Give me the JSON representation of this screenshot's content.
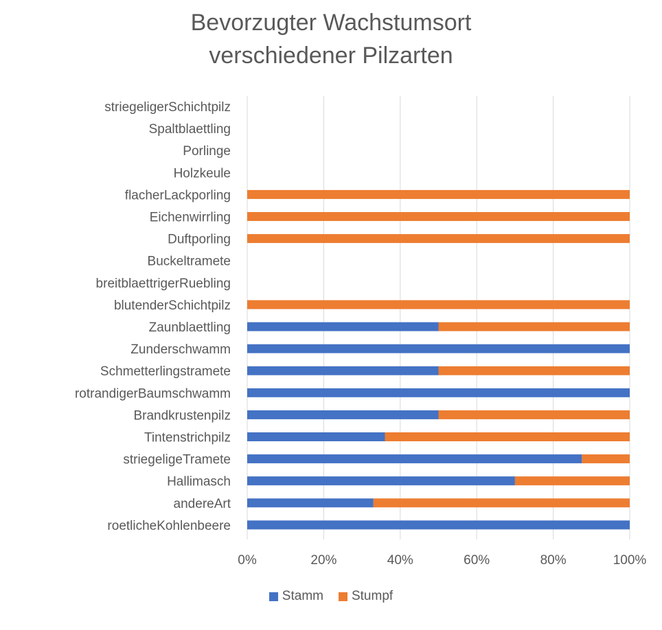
{
  "chart_data": {
    "type": "bar",
    "orientation": "horizontal",
    "stacked": "percent",
    "title_lines": [
      "Bevorzugter Wachstumsort",
      "verschiedener Pilzarten"
    ],
    "categories": [
      "striegeligerSchichtpilz",
      "Spaltblaettling",
      "Porlinge",
      "Holzkeule",
      "flacherLackporling",
      "Eichenwirrling",
      "Duftporling",
      "Buckeltramete",
      "breitblaettrigerRuebling",
      "blutenderSchichtpilz",
      "Zaunblaettling",
      "Zunderschwamm",
      "Schmetterlingstramete",
      "rotrandigerBaumschwamm",
      "Brandkrustenpilz",
      "Tintenstrichpilz",
      "striegeligeTramete",
      "Hallimasch",
      "andereArt",
      "roetlicheKohlenbeere"
    ],
    "series": [
      {
        "name": "Stamm",
        "color": "#4472C4",
        "values": [
          0,
          0,
          0,
          0,
          0,
          0,
          0,
          0,
          0,
          0,
          50,
          100,
          50,
          100,
          50,
          36,
          87.5,
          70,
          33,
          100
        ]
      },
      {
        "name": "Stumpf",
        "color": "#ED7D31",
        "values": [
          0,
          0,
          0,
          0,
          100,
          100,
          100,
          0,
          0,
          100,
          50,
          0,
          50,
          0,
          50,
          64,
          12.5,
          30,
          67,
          0
        ]
      }
    ],
    "x_ticks": [
      "0%",
      "20%",
      "40%",
      "60%",
      "80%",
      "100%"
    ],
    "xlim": [
      0,
      100
    ],
    "grid": true,
    "legend_position": "bottom"
  }
}
